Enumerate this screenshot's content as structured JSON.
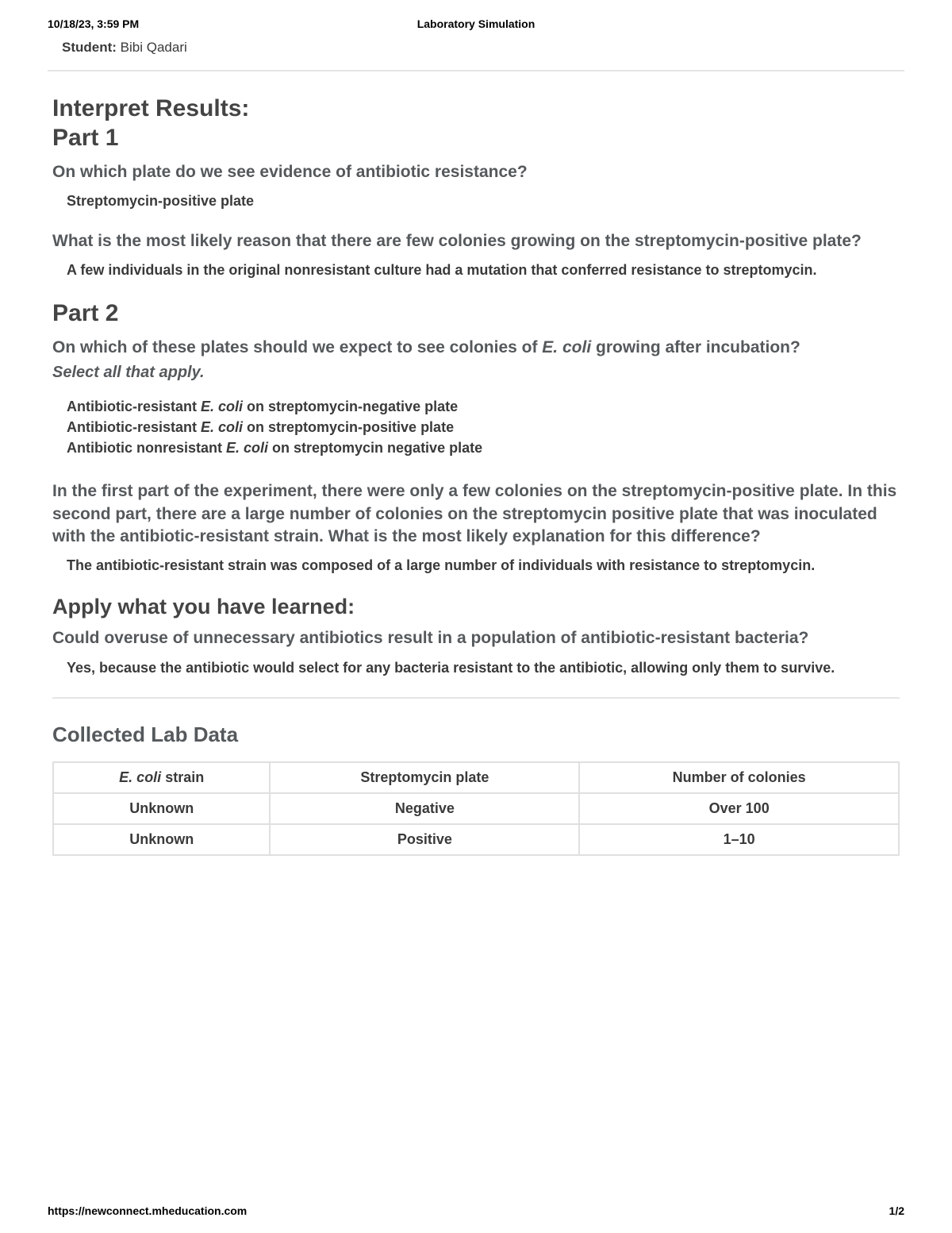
{
  "header": {
    "datetime": "10/18/23, 3:59 PM",
    "title": "Laboratory Simulation"
  },
  "student": {
    "label": "Student:",
    "name": "Bibi Qadari"
  },
  "section": {
    "title_line1": "Interpret Results:",
    "title_line2": "Part 1"
  },
  "q1": {
    "text": "On which plate do we see evidence of antibiotic resistance?",
    "answer": "Streptomycin-positive plate"
  },
  "q2": {
    "text": "What is the most likely reason that there are few colonies growing on the streptomycin-positive plate?",
    "answer": "A few individuals in the original nonresistant culture had a mutation that conferred resistance to streptomycin."
  },
  "part2_heading": "Part 2",
  "q3": {
    "pre": "On which of these plates should we expect to see colonies of ",
    "species": "E. coli",
    "post": " growing after incubation?",
    "instruction": "Select all that apply.",
    "answers": [
      {
        "pre": "Antibiotic-resistant ",
        "sp": "E. coli",
        "post": " on streptomycin-negative plate"
      },
      {
        "pre": "Antibiotic-resistant ",
        "sp": "E. coli",
        "post": " on streptomycin-positive plate"
      },
      {
        "pre": "Antibiotic nonresistant ",
        "sp": "E. coli",
        "post": " on streptomycin negative plate"
      }
    ]
  },
  "q4": {
    "text": "In the first part of the experiment, there were only a few colonies on the streptomycin-positive plate. In this second part, there are a large number of colonies on the streptomycin positive plate that was inoculated with the antibiotic-resistant strain. What is the most likely explanation for this difference?",
    "answer": "The antibiotic-resistant strain was composed of a large number of individuals with resistance to streptomycin."
  },
  "apply_heading": "Apply what you have learned:",
  "q5": {
    "text": "Could overuse of unnecessary antibiotics result in a population of antibiotic-resistant bacteria?",
    "answer": "Yes, because the antibiotic would select for any bacteria resistant to the antibiotic, allowing only them to survive."
  },
  "collected_heading": "Collected Lab Data",
  "table": {
    "col1_pre": "",
    "col1_sp": "E. coli",
    "col1_post": " strain",
    "col2": "Streptomycin plate",
    "col3": "Number of colonies",
    "rows": [
      {
        "c1": "Unknown",
        "c2": "Negative",
        "c3": "Over 100"
      },
      {
        "c1": "Unknown",
        "c2": "Positive",
        "c3": "1–10"
      }
    ]
  },
  "footer": {
    "url": "https://newconnect.mheducation.com",
    "page": "1/2"
  }
}
